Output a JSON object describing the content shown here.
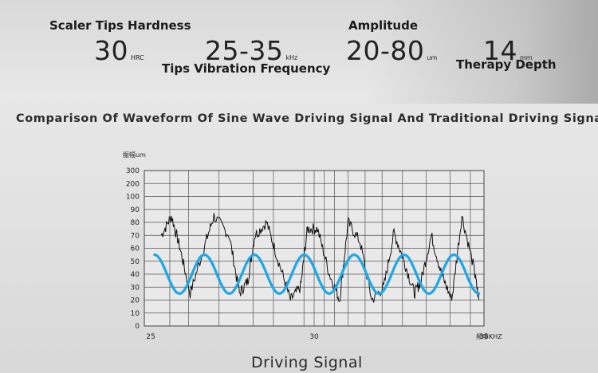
{
  "specs": [
    {
      "label": "Scaler Tips Hardness",
      "value": "30",
      "unit": "HRC"
    },
    {
      "label": "Tips Vibration Frequency",
      "value": "25-35",
      "unit": "kHz"
    },
    {
      "label": "Amplitude",
      "value": "20-80",
      "unit": "um"
    },
    {
      "label": "Therapy Depth",
      "value": "14",
      "unit": "mm"
    }
  ],
  "chart_data": {
    "type": "line",
    "title": "Comparison Of Waveform Of Sine Wave Driving Signal And Traditional Driving Signal",
    "ylabel": "振幅um",
    "xlabel": "频率KHZ",
    "ylim": [
      0,
      300
    ],
    "xlim": [
      25,
      35
    ],
    "x_ticks": [
      "25",
      "30",
      "35"
    ],
    "y_ticks": [
      "0",
      "10",
      "20",
      "30",
      "40",
      "50",
      "60",
      "70",
      "80",
      "90",
      "100",
      "200",
      "300"
    ],
    "grid": true,
    "series": [
      {
        "color": "#111111",
        "points": [
          [
            25.5,
            70
          ],
          [
            25.8,
            85
          ],
          [
            26.05,
            60
          ],
          [
            26.35,
            25
          ],
          [
            26.75,
            60
          ],
          [
            27.05,
            85
          ],
          [
            27.5,
            70
          ],
          [
            27.8,
            25
          ],
          [
            28.05,
            35
          ],
          [
            28.25,
            70
          ],
          [
            28.6,
            80
          ],
          [
            28.95,
            50
          ],
          [
            29.3,
            20
          ],
          [
            29.6,
            30
          ],
          [
            29.8,
            75
          ],
          [
            30.1,
            75
          ],
          [
            30.45,
            40
          ],
          [
            30.75,
            20
          ],
          [
            31.0,
            80
          ],
          [
            31.35,
            65
          ],
          [
            31.7,
            20
          ],
          [
            32.05,
            30
          ],
          [
            32.35,
            72
          ],
          [
            32.65,
            50
          ],
          [
            32.95,
            25
          ],
          [
            33.15,
            35
          ],
          [
            33.45,
            70
          ],
          [
            33.75,
            40
          ],
          [
            34.05,
            20
          ],
          [
            34.35,
            85
          ],
          [
            34.7,
            45
          ],
          [
            34.85,
            20
          ]
        ]
      },
      {
        "color": "#1ea7e8",
        "center": 40,
        "amplitude": 15,
        "cycles": 6.5
      }
    ]
  },
  "footer": "Driving Signal"
}
